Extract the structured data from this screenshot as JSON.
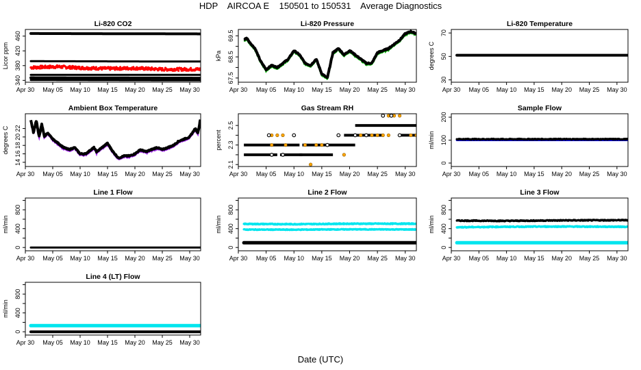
{
  "figure": {
    "title": "HDP    AIRCOA E    150501 to 150531    Average Diagnostics",
    "xlabel": "Date (UTC)",
    "date_ticks": [
      "Apr 30",
      "May 05",
      "May 10",
      "May 15",
      "May 20",
      "May 25",
      "May 30"
    ],
    "date_tick_days": [
      0,
      5,
      10,
      15,
      20,
      25,
      30
    ],
    "date_range_days": [
      0,
      32
    ]
  },
  "colors": {
    "black": "#000000",
    "red": "#ff0000",
    "green": "#00b000",
    "purple": "#a020f0",
    "orange": "#ffa500",
    "cyan": "#00e5ee",
    "blue": "#0000ff"
  },
  "chart_data": [
    {
      "id": "co2",
      "title": "Li-820 CO2",
      "type": "scatter",
      "ylabel": "Licor ppm",
      "ylim": [
        335,
        478
      ],
      "yticks": [
        340,
        380,
        420,
        460
      ],
      "series": [
        {
          "name": "high",
          "color": "black",
          "pattern": "band",
          "t": [
            1,
            32
          ],
          "y": [
            467,
            466
          ],
          "width": 4
        },
        {
          "name": "mid",
          "color": "black",
          "pattern": "band",
          "t": [
            1,
            32
          ],
          "y": [
            392,
            391
          ],
          "width": 3
        },
        {
          "name": "ambient",
          "color": "red",
          "pattern": "noise",
          "t": [
            1,
            6,
            10,
            15,
            20,
            25,
            32
          ],
          "y": [
            375,
            377,
            374,
            372,
            373,
            370,
            370
          ],
          "amp": 4
        },
        {
          "name": "low1",
          "color": "black",
          "pattern": "band",
          "t": [
            1,
            32
          ],
          "y": [
            355,
            355
          ],
          "width": 3
        },
        {
          "name": "low2",
          "color": "black",
          "pattern": "band",
          "t": [
            1,
            32
          ],
          "y": [
            347,
            346
          ],
          "width": 4
        },
        {
          "name": "low3",
          "color": "black",
          "pattern": "band",
          "t": [
            1,
            32
          ],
          "y": [
            341,
            340
          ],
          "width": 3
        }
      ]
    },
    {
      "id": "pressure",
      "title": "Li-820 Pressure",
      "type": "line",
      "ylabel": "kPa",
      "ylim": [
        67.3,
        69.8
      ],
      "yticks": [
        67.5,
        68.5,
        69.5
      ],
      "ytick_labels": [
        "67.5",
        "68.5",
        "69.5"
      ],
      "minor_yticks": [
        68.0,
        69.0
      ],
      "series": [
        {
          "name": "pressure",
          "color": "black",
          "pattern": "line",
          "shadow": "green",
          "t": [
            1,
            1.5,
            2,
            3,
            4,
            5,
            6,
            7,
            8,
            9,
            10,
            11,
            12,
            13,
            14,
            15,
            16,
            17,
            18,
            19,
            20,
            21,
            22,
            23,
            24,
            25,
            26,
            27,
            28,
            29,
            30,
            31,
            32
          ],
          "y": [
            69.3,
            69.4,
            69.2,
            68.9,
            68.3,
            67.9,
            68.1,
            68.0,
            68.2,
            68.4,
            68.8,
            68.6,
            68.2,
            68.1,
            68.4,
            67.7,
            67.5,
            68.7,
            68.9,
            68.6,
            68.8,
            68.6,
            68.4,
            68.2,
            68.2,
            68.7,
            68.8,
            68.9,
            69.1,
            69.3,
            69.6,
            69.7,
            69.6
          ]
        }
      ]
    },
    {
      "id": "licor_temp",
      "title": "Li-820 Temperature",
      "type": "scatter",
      "ylabel": "degrees C",
      "ylim": [
        28,
        73
      ],
      "yticks": [
        30,
        50,
        70
      ],
      "series": [
        {
          "name": "temp",
          "color": "black",
          "pattern": "band",
          "t": [
            1,
            32
          ],
          "y": [
            51,
            51
          ],
          "width": 4
        }
      ]
    },
    {
      "id": "ambient_box_temp",
      "title": "Ambient Box Temperature",
      "type": "line",
      "ylabel": "degrees C",
      "ylim": [
        13,
        25.5
      ],
      "yticks": [
        14,
        16,
        18,
        20,
        22
      ],
      "series": [
        {
          "name": "temp",
          "color": "black",
          "pattern": "line",
          "shadow": "purple",
          "t": [
            1,
            1.5,
            2,
            2.5,
            3,
            3.5,
            4,
            5,
            6,
            7,
            8,
            9,
            10,
            11,
            12,
            12.5,
            13,
            14,
            15,
            16,
            17,
            18,
            19,
            20,
            21,
            22,
            23,
            24,
            25,
            26,
            27,
            28,
            29,
            30,
            31,
            31.5,
            32
          ],
          "y": [
            24,
            21,
            24,
            20,
            23,
            20,
            21,
            19.5,
            18.5,
            17.5,
            17,
            17.5,
            16,
            16,
            17,
            17.5,
            16.5,
            17.5,
            18.5,
            16.5,
            15,
            15.5,
            15.5,
            16,
            17,
            16.5,
            17,
            17.5,
            17,
            17.5,
            18,
            19,
            19.5,
            20,
            22,
            21,
            24.5
          ]
        }
      ]
    },
    {
      "id": "gas_stream_rh",
      "title": "Gas Stream RH",
      "type": "scatter",
      "ylabel": "percent",
      "ylim": [
        2.08,
        2.62
      ],
      "yticks": [
        2.1,
        2.3,
        2.5
      ],
      "ytick_labels": [
        "2.1",
        "2.3",
        "2.5"
      ],
      "minor_yticks": [
        2.2,
        2.4
      ],
      "series": [
        {
          "name": "rh",
          "color": "black",
          "pattern": "steps",
          "segments": [
            [
              1,
              11,
              2.3
            ],
            [
              1,
              7,
              2.2
            ],
            [
              7.5,
              11.5,
              2.2
            ],
            [
              11.5,
              21,
              2.3
            ],
            [
              11,
              17,
              2.2
            ],
            [
              21,
              32,
              2.5
            ],
            [
              19,
              21,
              2.4
            ],
            [
              21,
              26,
              2.4
            ],
            [
              29,
              32,
              2.4
            ]
          ]
        },
        {
          "name": "rh_alt",
          "color": "orange",
          "pattern": "dots",
          "points": [
            [
              6,
              2.4
            ],
            [
              7,
              2.4
            ],
            [
              8,
              2.4
            ],
            [
              6,
              2.3
            ],
            [
              8.5,
              2.3
            ],
            [
              12,
              2.3
            ],
            [
              14,
              2.3
            ],
            [
              15,
              2.3
            ],
            [
              13,
              2.1
            ],
            [
              19,
              2.2
            ],
            [
              22,
              2.4
            ],
            [
              24,
              2.4
            ],
            [
              25,
              2.4
            ],
            [
              26,
              2.4
            ],
            [
              27,
              2.4
            ],
            [
              27,
              2.6
            ],
            [
              28,
              2.6
            ],
            [
              29,
              2.6
            ],
            [
              31,
              2.4
            ],
            [
              32,
              2.4
            ]
          ]
        },
        {
          "name": "rh_open",
          "color": "black",
          "pattern": "dots",
          "points": [
            [
              5.5,
              2.4
            ],
            [
              6,
              2.2
            ],
            [
              8,
              2.2
            ],
            [
              10,
              2.4
            ],
            [
              16,
              2.3
            ],
            [
              18,
              2.4
            ],
            [
              21,
              2.4
            ],
            [
              23,
              2.4
            ],
            [
              26,
              2.6
            ],
            [
              27.5,
              2.6
            ],
            [
              29,
              2.4
            ]
          ]
        }
      ]
    },
    {
      "id": "sample_flow",
      "title": "Sample Flow",
      "type": "scatter",
      "ylabel": "ml/min",
      "ylim": [
        -15,
        215
      ],
      "yticks": [
        0,
        100,
        200
      ],
      "series": [
        {
          "name": "flow_under",
          "color": "blue",
          "pattern": "band",
          "t": [
            1,
            32
          ],
          "y": [
            100,
            100
          ],
          "width": 3
        },
        {
          "name": "flow",
          "color": "black",
          "pattern": "noise",
          "t": [
            1,
            32
          ],
          "y": [
            104,
            104
          ],
          "amp": 2
        }
      ]
    },
    {
      "id": "line1_flow",
      "title": "Line 1 Flow",
      "type": "scatter",
      "ylabel": "ml/min",
      "ylim": [
        -70,
        1050
      ],
      "yticks": [
        0,
        200,
        400,
        600,
        800,
        1000
      ],
      "ytick_labels": [
        "0",
        "400",
        "800"
      ],
      "series": [
        {
          "name": "flow",
          "color": "black",
          "pattern": "band",
          "t": [
            1,
            32
          ],
          "y": [
            0,
            0
          ],
          "width": 3
        }
      ]
    },
    {
      "id": "line2_flow",
      "title": "Line 2 Flow",
      "type": "scatter",
      "ylabel": "ml/min",
      "ylim": [
        -70,
        1050
      ],
      "yticks": [
        0,
        200,
        400,
        600,
        800,
        1000
      ],
      "ytick_labels": [
        "0",
        "400",
        "800"
      ],
      "series": [
        {
          "name": "flow_a",
          "color": "cyan",
          "pattern": "noise",
          "t": [
            1,
            10,
            20,
            32
          ],
          "y": [
            500,
            495,
            505,
            505
          ],
          "amp": 10
        },
        {
          "name": "flow_b",
          "color": "cyan",
          "pattern": "noise",
          "t": [
            1,
            10,
            20,
            32
          ],
          "y": [
            380,
            378,
            385,
            382
          ],
          "amp": 8
        },
        {
          "name": "flow_c",
          "color": "black",
          "pattern": "band",
          "t": [
            1,
            32
          ],
          "y": [
            100,
            100
          ],
          "width": 5
        }
      ]
    },
    {
      "id": "line3_flow",
      "title": "Line 3 Flow",
      "type": "scatter",
      "ylabel": "ml/min",
      "ylim": [
        -70,
        1050
      ],
      "yticks": [
        0,
        200,
        400,
        600,
        800,
        1000
      ],
      "ytick_labels": [
        "0",
        "400",
        "800"
      ],
      "series": [
        {
          "name": "flow_a",
          "color": "black",
          "pattern": "noise",
          "t": [
            1,
            10,
            20,
            32
          ],
          "y": [
            570,
            565,
            575,
            580
          ],
          "amp": 10
        },
        {
          "name": "flow_b",
          "color": "cyan",
          "pattern": "noise",
          "t": [
            1,
            10,
            20,
            32
          ],
          "y": [
            430,
            440,
            445,
            440
          ],
          "amp": 10
        },
        {
          "name": "flow_c",
          "color": "cyan",
          "pattern": "band",
          "t": [
            1,
            32
          ],
          "y": [
            100,
            100
          ],
          "width": 5
        }
      ]
    },
    {
      "id": "line4_flow",
      "title": "Line 4 (LT) Flow",
      "type": "scatter",
      "ylabel": "ml/min",
      "ylim": [
        -70,
        1050
      ],
      "yticks": [
        0,
        200,
        400,
        600,
        800,
        1000
      ],
      "ytick_labels": [
        "0",
        "400",
        "800"
      ],
      "series": [
        {
          "name": "flow_a",
          "color": "cyan",
          "pattern": "band",
          "t": [
            1,
            32
          ],
          "y": [
            130,
            130
          ],
          "width": 5
        },
        {
          "name": "flow_b",
          "color": "black",
          "pattern": "band",
          "t": [
            1,
            32
          ],
          "y": [
            0,
            0
          ],
          "width": 4
        }
      ]
    }
  ]
}
